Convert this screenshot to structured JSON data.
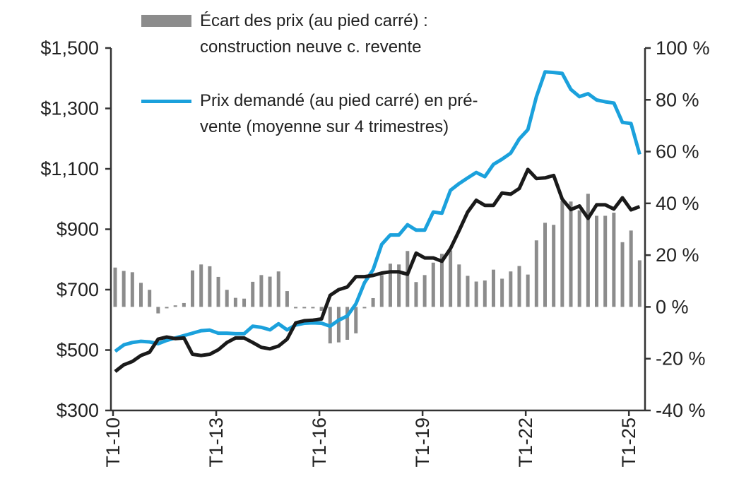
{
  "chart_data": {
    "type": "bar+line",
    "categories_start": "T1-10",
    "x_tick_labels": [
      "T1-10",
      "T1-13",
      "T1-16",
      "T1-19",
      "T1-22",
      "T1-25"
    ],
    "left_axis": {
      "ylim": [
        300,
        1500
      ],
      "ticks": [
        "$300",
        "$500",
        "$700",
        "$900",
        "$1,100",
        "$1,300",
        "$1,500"
      ],
      "tick_values": [
        300,
        500,
        700,
        900,
        1100,
        1300,
        1500
      ]
    },
    "right_axis": {
      "ylim": [
        -40,
        100
      ],
      "ticks": [
        "-40 %",
        "-20 %",
        "0 %",
        "20 %",
        "40 %",
        "60 %",
        "80 %",
        "100 %"
      ],
      "tick_values": [
        -40,
        -20,
        0,
        20,
        40,
        60,
        80,
        100
      ]
    },
    "grid": false,
    "legend_placement": "top-left",
    "series": [
      {
        "name": "Écart des prix (au pied carré) : construction neuve c. revente",
        "type": "bar",
        "axis": "right",
        "color": "#8c8c8c",
        "values": [
          15.2,
          13.9,
          13.4,
          9.3,
          6.6,
          -2.5,
          -0.3,
          0.6,
          1.5,
          14.1,
          16.4,
          15.7,
          11.6,
          6.6,
          3.5,
          3.2,
          9.7,
          12.3,
          11.7,
          13.7,
          6.1,
          -0.5,
          -0.5,
          -0.5,
          -1.5,
          -14.1,
          -13.7,
          -12.7,
          -10.2,
          -0.5,
          3.4,
          12.3,
          16.7,
          16.4,
          21.6,
          9.6,
          12.3,
          17.1,
          20.5,
          21.8,
          16.4,
          12.0,
          9.8,
          10.2,
          14.4,
          10.9,
          13.7,
          15.8,
          12.5,
          25.7,
          32.5,
          31.7,
          41.0,
          40.7,
          37.3,
          43.7,
          35.2,
          35.2,
          36.4,
          25.0,
          29.5,
          18.0
        ]
      },
      {
        "name": "Prix demandé (au pied carré) en pré-vente (moyenne sur 4 trimestres)",
        "type": "line",
        "axis": "left",
        "color": "#1ba1dc",
        "values": [
          496,
          517,
          525,
          529,
          527,
          521,
          532,
          540,
          548,
          556,
          564,
          566,
          556,
          556,
          554,
          554,
          579,
          575,
          567,
          587,
          567,
          583,
          589,
          590,
          589,
          579,
          599,
          613,
          653,
          723,
          766,
          850,
          881,
          881,
          915,
          897,
          897,
          957,
          953,
          1029,
          1051,
          1070,
          1088,
          1074,
          1115,
          1132,
          1152,
          1199,
          1230,
          1339,
          1421,
          1419,
          1416,
          1363,
          1339,
          1349,
          1328,
          1322,
          1318,
          1254,
          1250,
          1148
        ]
      },
      {
        "type": "line",
        "axis": "left",
        "color": "#1a1a1a",
        "values": [
          429,
          451,
          462,
          482,
          493,
          536,
          543,
          538,
          540,
          486,
          482,
          486,
          501,
          525,
          540,
          540,
          525,
          509,
          504,
          513,
          536,
          590,
          597,
          599,
          603,
          681,
          700,
          709,
          743,
          743,
          747,
          755,
          759,
          759,
          751,
          821,
          805,
          805,
          794,
          836,
          895,
          957,
          996,
          979,
          979,
          1020,
          1016,
          1035,
          1098,
          1068,
          1070,
          1078,
          1000,
          965,
          977,
          936,
          981,
          981,
          967,
          1004,
          964,
          975
        ]
      }
    ]
  }
}
